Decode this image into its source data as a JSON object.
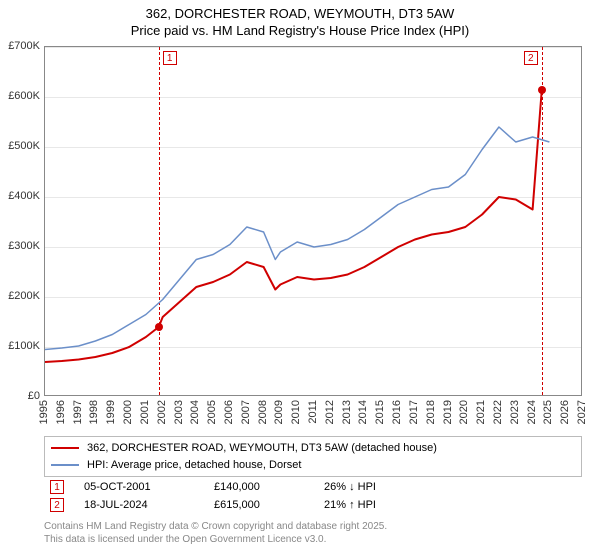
{
  "title": {
    "line1": "362, DORCHESTER ROAD, WEYMOUTH, DT3 5AW",
    "line2": "Price paid vs. HM Land Registry's House Price Index (HPI)"
  },
  "chart": {
    "type": "line",
    "background_color": "#ffffff",
    "grid_color": "#e8e8e8",
    "border_color": "#888888",
    "xlim": [
      1995,
      2027
    ],
    "ylim": [
      0,
      700000
    ],
    "ytick_step": 100000,
    "ytick_labels": [
      "£0",
      "£100K",
      "£200K",
      "£300K",
      "£400K",
      "£500K",
      "£600K",
      "£700K"
    ],
    "xticks": [
      1995,
      1996,
      1997,
      1998,
      1999,
      2000,
      2001,
      2002,
      2003,
      2004,
      2005,
      2006,
      2007,
      2008,
      2009,
      2010,
      2011,
      2012,
      2013,
      2014,
      2015,
      2016,
      2017,
      2018,
      2019,
      2020,
      2021,
      2022,
      2023,
      2024,
      2025,
      2026,
      2027
    ],
    "label_fontsize": 11,
    "title_fontsize": 13,
    "series": [
      {
        "name": "price_paid",
        "label": "362, DORCHESTER ROAD, WEYMOUTH, DT3 5AW (detached house)",
        "color": "#d00000",
        "line_width": 2,
        "years": [
          1995,
          1996,
          1997,
          1998,
          1999,
          2000,
          2001,
          2001.76,
          2002,
          2003,
          2004,
          2005,
          2006,
          2007,
          2008,
          2008.7,
          2009,
          2010,
          2011,
          2012,
          2013,
          2014,
          2015,
          2016,
          2017,
          2018,
          2019,
          2020,
          2021,
          2022,
          2023,
          2024,
          2024.55
        ],
        "values": [
          70000,
          72000,
          75000,
          80000,
          88000,
          100000,
          120000,
          140000,
          160000,
          190000,
          220000,
          230000,
          245000,
          270000,
          260000,
          215000,
          225000,
          240000,
          235000,
          238000,
          245000,
          260000,
          280000,
          300000,
          315000,
          325000,
          330000,
          340000,
          365000,
          400000,
          395000,
          375000,
          615000
        ]
      },
      {
        "name": "hpi",
        "label": "HPI: Average price, detached house, Dorset",
        "color": "#6b8fc9",
        "line_width": 1.5,
        "years": [
          1995,
          1996,
          1997,
          1998,
          1999,
          2000,
          2001,
          2002,
          2003,
          2004,
          2005,
          2006,
          2007,
          2008,
          2008.7,
          2009,
          2010,
          2011,
          2012,
          2013,
          2014,
          2015,
          2016,
          2017,
          2018,
          2019,
          2020,
          2021,
          2022,
          2023,
          2024,
          2025
        ],
        "values": [
          95000,
          98000,
          102000,
          112000,
          125000,
          145000,
          165000,
          195000,
          235000,
          275000,
          285000,
          305000,
          340000,
          330000,
          275000,
          290000,
          310000,
          300000,
          305000,
          315000,
          335000,
          360000,
          385000,
          400000,
          415000,
          420000,
          445000,
          495000,
          540000,
          510000,
          520000,
          510000
        ]
      }
    ],
    "sale_markers": [
      {
        "id": "1",
        "year": 2001.76,
        "value": 140000
      },
      {
        "id": "2",
        "year": 2024.55,
        "value": 615000
      }
    ]
  },
  "legend": {
    "items": [
      {
        "color": "#d00000",
        "label": "362, DORCHESTER ROAD, WEYMOUTH, DT3 5AW (detached house)"
      },
      {
        "color": "#6b8fc9",
        "label": "HPI: Average price, detached house, Dorset"
      }
    ]
  },
  "sales": [
    {
      "marker": "1",
      "date": "05-OCT-2001",
      "price": "£140,000",
      "diff": "26% ↓ HPI"
    },
    {
      "marker": "2",
      "date": "18-JUL-2024",
      "price": "£615,000",
      "diff": "21% ↑ HPI"
    }
  ],
  "footer": {
    "line1": "Contains HM Land Registry data © Crown copyright and database right 2025.",
    "line2": "This data is licensed under the Open Government Licence v3.0."
  }
}
